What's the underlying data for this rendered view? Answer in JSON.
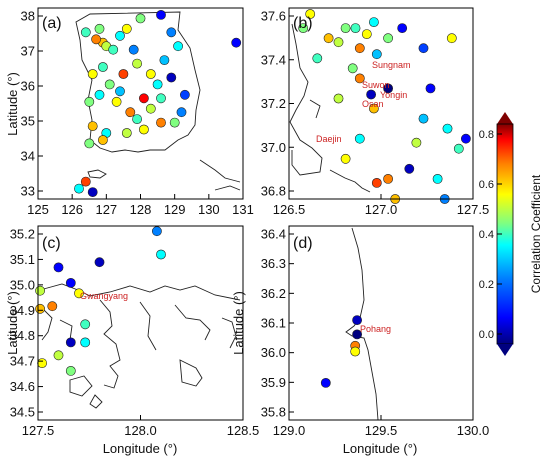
{
  "figure": {
    "panels": [
      {
        "id": "a",
        "label": "(a)",
        "xticks": [
          "125",
          "126",
          "127",
          "128",
          "129",
          "130",
          "131"
        ],
        "yticks": [
          "38",
          "37",
          "36",
          "35",
          "34",
          "33"
        ],
        "ylabel": "Latitude (°)"
      },
      {
        "id": "b",
        "label": "(b)",
        "xticks": [
          "126.5",
          "127.0",
          "127.5"
        ],
        "yticks": [
          "37.6",
          "37.4",
          "37.2",
          "37.0",
          "36.8"
        ],
        "cities": [
          "Sungnam",
          "Suwon",
          "Yongin",
          "Osan",
          "Daejin"
        ]
      },
      {
        "id": "c",
        "label": "(c)",
        "xticks": [
          "127.5",
          "128.0",
          "128.5"
        ],
        "yticks": [
          "35.2",
          "35.1",
          "35.0",
          "34.9",
          "34.8",
          "34.7",
          "34.6",
          "34.5"
        ],
        "xlabel": "Longitude (°)",
        "ylabel": "Latitude (°)",
        "cities": [
          "Gwangyang"
        ]
      },
      {
        "id": "d",
        "label": "(d)",
        "xticks": [
          "129.0",
          "129.5",
          "130.0"
        ],
        "yticks": [
          "36.4",
          "36.3",
          "36.2",
          "36.1",
          "36.0",
          "35.9",
          "35.8"
        ],
        "xlabel": "Longitude (°)",
        "ylabel": "Latitude (°)",
        "cities": [
          "Pohang"
        ]
      }
    ],
    "colorbar": {
      "label": "Correlation Coefficient",
      "ticks": [
        "0.8",
        "0.6",
        "0.4",
        "0.2",
        "0.0"
      ],
      "range": [
        0.0,
        0.8
      ],
      "colors": [
        "#00007f",
        "#0000ff",
        "#0080ff",
        "#00ffff",
        "#80ff80",
        "#ffff00",
        "#ff8000",
        "#ff0000",
        "#7f0000"
      ]
    }
  },
  "chart_data": [
    {
      "type": "scatter",
      "panel": "a",
      "xlim": [
        125,
        131
      ],
      "ylim": [
        33,
        38.5
      ],
      "points": [
        [
          126.9,
          37.5,
          0.55
        ],
        [
          127.0,
          37.4,
          0.45
        ],
        [
          127.2,
          37.3,
          0.35
        ],
        [
          126.7,
          37.6,
          0.6
        ],
        [
          127.4,
          37.7,
          0.3
        ],
        [
          127.6,
          37.9,
          0.5
        ],
        [
          128.0,
          38.2,
          0.4
        ],
        [
          128.6,
          38.3,
          0.1
        ],
        [
          128.9,
          37.8,
          0.2
        ],
        [
          129.1,
          37.4,
          0.3
        ],
        [
          128.7,
          37.0,
          0.25
        ],
        [
          128.3,
          36.6,
          0.5
        ],
        [
          127.9,
          36.9,
          0.45
        ],
        [
          127.5,
          36.6,
          0.65
        ],
        [
          127.1,
          36.3,
          0.4
        ],
        [
          126.8,
          36.0,
          0.3
        ],
        [
          127.3,
          35.8,
          0.5
        ],
        [
          127.7,
          35.5,
          0.6
        ],
        [
          128.1,
          35.9,
          0.7
        ],
        [
          128.6,
          35.9,
          0.35
        ],
        [
          129.2,
          35.5,
          0.2
        ],
        [
          129.0,
          35.2,
          0.4
        ],
        [
          128.6,
          35.2,
          0.6
        ],
        [
          128.1,
          35.0,
          0.5
        ],
        [
          127.6,
          34.9,
          0.45
        ],
        [
          127.0,
          34.9,
          0.3
        ],
        [
          126.6,
          35.1,
          0.55
        ],
        [
          126.5,
          35.8,
          0.4
        ],
        [
          126.6,
          36.6,
          0.5
        ],
        [
          126.9,
          36.8,
          0.35
        ],
        [
          128.9,
          36.5,
          0.05
        ],
        [
          129.3,
          36.0,
          0.15
        ],
        [
          128.5,
          36.3,
          0.3
        ],
        [
          127.8,
          37.3,
          0.2
        ],
        [
          126.4,
          37.8,
          0.35
        ],
        [
          126.5,
          34.6,
          0.4
        ],
        [
          126.9,
          34.7,
          0.55
        ],
        [
          126.2,
          33.3,
          0.3
        ],
        [
          126.6,
          33.2,
          0.05
        ],
        [
          126.4,
          33.5,
          0.65
        ],
        [
          130.8,
          37.5,
          0.1
        ],
        [
          127.4,
          36.1,
          0.25
        ],
        [
          128.3,
          35.6,
          0.45
        ],
        [
          127.9,
          35.3,
          0.35
        ],
        [
          126.8,
          37.9,
          0.4
        ]
      ]
    },
    {
      "type": "scatter",
      "panel": "b",
      "xlim": [
        126.5,
        127.8
      ],
      "ylim": [
        36.7,
        37.65
      ],
      "points": [
        [
          126.9,
          37.55,
          0.4
        ],
        [
          126.97,
          37.55,
          0.35
        ],
        [
          127.05,
          37.52,
          0.5
        ],
        [
          127.1,
          37.58,
          0.3
        ],
        [
          126.85,
          37.48,
          0.45
        ],
        [
          126.78,
          37.5,
          0.55
        ],
        [
          127.0,
          37.45,
          0.6
        ],
        [
          127.12,
          37.42,
          0.25
        ],
        [
          127.2,
          37.5,
          0.4
        ],
        [
          127.3,
          37.55,
          0.1
        ],
        [
          127.45,
          37.45,
          0.15
        ],
        [
          127.65,
          37.5,
          0.5
        ],
        [
          127.0,
          37.3,
          0.6
        ],
        [
          127.08,
          37.22,
          0.05
        ],
        [
          127.2,
          37.25,
          0.0
        ],
        [
          127.1,
          37.15,
          0.55
        ],
        [
          126.95,
          37.35,
          0.4
        ],
        [
          126.7,
          37.4,
          0.35
        ],
        [
          126.6,
          37.55,
          0.4
        ],
        [
          126.65,
          37.62,
          0.5
        ],
        [
          127.5,
          37.25,
          0.1
        ],
        [
          127.45,
          37.1,
          0.25
        ],
        [
          127.62,
          37.05,
          0.3
        ],
        [
          127.4,
          36.98,
          0.45
        ],
        [
          127.35,
          36.85,
          0.05
        ],
        [
          127.55,
          36.8,
          0.3
        ],
        [
          127.2,
          36.8,
          0.6
        ],
        [
          127.12,
          36.78,
          0.65
        ],
        [
          127.25,
          36.7,
          0.55
        ],
        [
          127.7,
          36.95,
          0.35
        ],
        [
          127.6,
          36.7,
          0.2
        ],
        [
          127.75,
          37.0,
          0.1
        ],
        [
          126.85,
          37.2,
          0.45
        ],
        [
          127.0,
          37.0,
          0.3
        ],
        [
          126.9,
          36.9,
          0.5
        ]
      ]
    },
    {
      "type": "scatter",
      "panel": "c",
      "xlim": [
        127.5,
        128.5
      ],
      "ylim": [
        34.45,
        35.2
      ],
      "points": [
        [
          128.08,
          35.18,
          0.2
        ],
        [
          128.1,
          35.09,
          0.3
        ],
        [
          127.8,
          35.06,
          0.05
        ],
        [
          127.6,
          35.04,
          0.1
        ],
        [
          127.51,
          34.95,
          0.45
        ],
        [
          127.66,
          34.98,
          0.1
        ],
        [
          127.7,
          34.94,
          0.5
        ],
        [
          127.51,
          34.88,
          0.55
        ],
        [
          127.57,
          34.89,
          0.6
        ],
        [
          127.73,
          34.82,
          0.35
        ],
        [
          127.66,
          34.75,
          0.05
        ],
        [
          127.73,
          34.75,
          0.3
        ],
        [
          127.6,
          34.7,
          0.45
        ],
        [
          127.52,
          34.67,
          0.5
        ],
        [
          127.66,
          34.64,
          0.4
        ]
      ]
    },
    {
      "type": "scatter",
      "panel": "d",
      "xlim": [
        129.0,
        130.0
      ],
      "ylim": [
        35.72,
        36.4
      ],
      "points": [
        [
          129.37,
          36.07,
          0.05
        ],
        [
          129.37,
          36.02,
          0.0
        ],
        [
          129.36,
          35.98,
          0.6
        ],
        [
          129.36,
          35.96,
          0.5
        ],
        [
          129.2,
          35.85,
          0.1
        ]
      ]
    }
  ]
}
